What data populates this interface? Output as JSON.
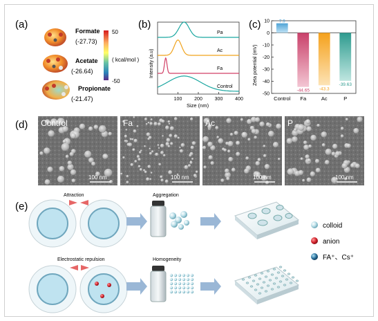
{
  "panels": {
    "a": {
      "label": "(a)",
      "molecules": [
        {
          "name": "Formate",
          "value": "(-27.73)"
        },
        {
          "name": "Acetate",
          "value": "(-26.64)"
        },
        {
          "name": "Propionate",
          "value": "(-21.47)"
        }
      ],
      "colorbar": {
        "max": "50",
        "min": "-50",
        "unit": "( kcal/mol )"
      }
    },
    "b": {
      "label": "(b)",
      "ylabel": "Intensity (a.u)",
      "xlabel": "Size (nm)",
      "xticks": [
        "100",
        "200",
        "300",
        "400"
      ],
      "curve_labels": [
        "Pa",
        "Ac",
        "Fa",
        "Control"
      ]
    },
    "c": {
      "label": "(c)",
      "ylabel": "Zeta potential (mV)",
      "yticks": [
        "10",
        "0",
        "-10",
        "-20",
        "-30",
        "-40",
        "-50"
      ],
      "colors": [
        "#4fa3d6",
        "#c9416a",
        "#f5a11c",
        "#2e9b8f"
      ]
    },
    "d": {
      "label": "(d)",
      "images": [
        {
          "label": "Control",
          "scale": "100 nm"
        },
        {
          "label": "Fa",
          "scale": "100 nm"
        },
        {
          "label": "Ac",
          "scale": "100 nm"
        },
        {
          "label": "P",
          "scale": "100 nm"
        }
      ]
    },
    "e": {
      "label": "(e)",
      "top": {
        "left_caption": "Attraction",
        "mid_caption": "Aggregation"
      },
      "bottom": {
        "left_caption": "Electrostatic repulsion",
        "mid_caption": "Homogeneity"
      },
      "legend": [
        {
          "text": "colloid",
          "color": "#8fc4cf"
        },
        {
          "text": "anion",
          "color": "#d0202a"
        },
        {
          "text": "FA⁺、Cs⁺",
          "color": "#2a6f9a"
        }
      ]
    }
  },
  "chart_data": [
    {
      "type": "line",
      "title": "",
      "xlabel": "Size (nm)",
      "ylabel": "Intensity (a.u)",
      "xlim": [
        0,
        400
      ],
      "series": [
        {
          "name": "Pa",
          "color": "#19a7a0",
          "peak_x": 130,
          "width": 25,
          "offset": 3
        },
        {
          "name": "Ac",
          "color": "#f0a21b",
          "peak_x": 100,
          "width": 18,
          "offset": 2
        },
        {
          "name": "Fa",
          "color": "#d23f66",
          "peak_x": 40,
          "width": 6,
          "offset": 1
        },
        {
          "name": "Control",
          "color": "#1aa6a0",
          "peak_x": 130,
          "width": 80,
          "offset": 0
        }
      ]
    },
    {
      "type": "bar",
      "title": "",
      "ylabel": "Zeta potential (mV)",
      "categories": [
        "Control",
        "Fa",
        "Ac",
        "P"
      ],
      "values": [
        7.9,
        -44.65,
        -43.3,
        -39.63
      ],
      "value_labels": [
        "7.9",
        "-44.65",
        "-43.3",
        "-39.63"
      ],
      "ylim": [
        -50,
        10
      ]
    }
  ]
}
